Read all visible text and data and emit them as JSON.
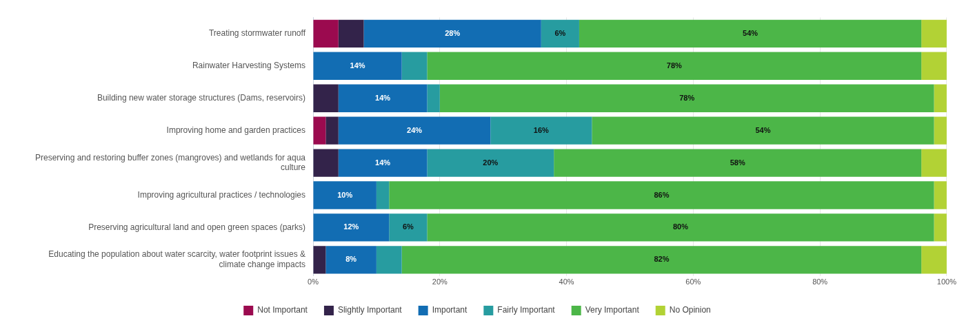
{
  "chart_data": {
    "type": "bar",
    "orientation": "horizontal",
    "stacked": true,
    "categories": [
      "Treating stormwater runoff",
      "Rainwater Harvesting Systems",
      "Building new water storage structures (Dams, reservoirs)",
      "Improving home and garden practices",
      "Preserving and restoring buffer zones (mangroves) and wetlands for aqua culture",
      "Improving agricultural practices / technologies",
      "Preserving agricultural land and open green spaces (parks)",
      "Educating the population about water scarcity, water footprint issues & climate change impacts"
    ],
    "series": [
      {
        "name": "Not Important",
        "color": "#9b0a4f",
        "values": [
          4,
          0,
          0,
          2,
          0,
          0,
          0,
          0
        ]
      },
      {
        "name": "Slightly Important",
        "color": "#33234a",
        "values": [
          4,
          0,
          4,
          2,
          4,
          0,
          0,
          2
        ]
      },
      {
        "name": "Important",
        "color": "#126db3",
        "values": [
          28,
          14,
          14,
          24,
          14,
          10,
          12,
          8
        ],
        "value_labels": [
          "28%",
          "14%",
          "14%",
          "24%",
          "14%",
          "10%",
          "12%",
          "8%"
        ]
      },
      {
        "name": "Fairly Important",
        "color": "#279ca0",
        "values": [
          6,
          4,
          2,
          16,
          20,
          2,
          6,
          4
        ],
        "value_labels": [
          "6%",
          null,
          null,
          "16%",
          "20%",
          null,
          "6%",
          null
        ]
      },
      {
        "name": "Very Important",
        "color": "#4cb648",
        "values": [
          54,
          78,
          78,
          54,
          58,
          86,
          80,
          82
        ],
        "value_labels": [
          "54%",
          "78%",
          "78%",
          "54%",
          "58%",
          "86%",
          "80%",
          "82%"
        ]
      },
      {
        "name": "No Opinion",
        "color": "#b2d235",
        "values": [
          4,
          4,
          2,
          2,
          4,
          2,
          2,
          4
        ]
      }
    ],
    "xlim": [
      0,
      100
    ],
    "xticks": [
      {
        "value": 0,
        "label": "0%"
      },
      {
        "value": 20,
        "label": "20%"
      },
      {
        "value": 40,
        "label": "40%"
      },
      {
        "value": 60,
        "label": "60%"
      },
      {
        "value": 80,
        "label": "80%"
      },
      {
        "value": 100,
        "label": "100%"
      }
    ],
    "grid": "x",
    "legend": "bottom"
  }
}
